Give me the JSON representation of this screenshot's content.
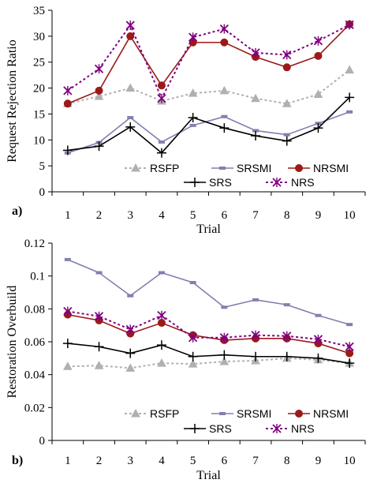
{
  "figure": {
    "panel_labels": [
      "a)",
      "b)"
    ]
  },
  "chart_data": [
    {
      "type": "line",
      "panel": "a)",
      "title": "",
      "xlabel": "Trial",
      "ylabel": "Request Rejection Ratio",
      "x": [
        1,
        2,
        3,
        4,
        5,
        6,
        7,
        8,
        9,
        10
      ],
      "x_tick_labels": [
        "1",
        "2",
        "3",
        "4",
        "5",
        "6",
        "7",
        "8",
        "9",
        "10"
      ],
      "ylim": [
        0,
        35
      ],
      "y_ticks": [
        0,
        5,
        10,
        15,
        20,
        25,
        30,
        35
      ],
      "y_tick_labels": [
        "0",
        "5",
        "10",
        "15",
        "20",
        "25",
        "30",
        "35"
      ],
      "grid": false,
      "legend_position": "bottom-right",
      "series": [
        {
          "name": "RSFP",
          "color": "#b0b0b0",
          "line": "dotted",
          "marker": "triangle",
          "values": [
            17.0,
            18.4,
            20.0,
            17.5,
            19.0,
            19.5,
            18.0,
            17.0,
            18.8,
            23.5
          ]
        },
        {
          "name": "SRSMI",
          "color": "#8080b0",
          "line": "solid",
          "marker": "dash",
          "values": [
            7.5,
            9.5,
            14.3,
            9.6,
            12.8,
            14.5,
            11.8,
            11.0,
            13.2,
            15.4
          ]
        },
        {
          "name": "NRSMI",
          "color": "#9c1a1a",
          "line": "solid",
          "marker": "circle",
          "values": [
            17.0,
            19.5,
            30.0,
            20.5,
            28.8,
            28.8,
            26.0,
            24.0,
            26.2,
            32.3
          ]
        },
        {
          "name": "SRS",
          "color": "#000000",
          "line": "solid",
          "marker": "plus",
          "values": [
            8.0,
            8.8,
            12.5,
            7.5,
            14.3,
            12.3,
            10.8,
            9.8,
            12.3,
            18.2
          ]
        },
        {
          "name": "NRS",
          "color": "#800080",
          "line": "dotted",
          "marker": "star",
          "values": [
            19.5,
            23.7,
            32.1,
            18.0,
            29.8,
            31.4,
            26.8,
            26.4,
            29.1,
            32.2
          ]
        }
      ]
    },
    {
      "type": "line",
      "panel": "b)",
      "title": "",
      "xlabel": "Trial",
      "ylabel": "Restoration Overbuild",
      "x": [
        1,
        2,
        3,
        4,
        5,
        6,
        7,
        8,
        9,
        10
      ],
      "x_tick_labels": [
        "1",
        "2",
        "3",
        "4",
        "5",
        "6",
        "7",
        "8",
        "9",
        "10"
      ],
      "ylim": [
        0,
        0.12
      ],
      "y_ticks": [
        0,
        0.02,
        0.04,
        0.06,
        0.08,
        0.1,
        0.12
      ],
      "y_tick_labels": [
        "0",
        "0.02",
        "0.04",
        "0.06",
        "0.08",
        "0.1",
        "0.12"
      ],
      "grid": false,
      "legend_position": "bottom-right",
      "series": [
        {
          "name": "RSFP",
          "color": "#b0b0b0",
          "line": "dotted",
          "marker": "triangle",
          "values": [
            0.045,
            0.0455,
            0.044,
            0.047,
            0.0465,
            0.048,
            0.0485,
            0.05,
            0.049,
            0.047
          ]
        },
        {
          "name": "SRSMI",
          "color": "#8080b0",
          "line": "solid",
          "marker": "dash",
          "values": [
            0.11,
            0.102,
            0.088,
            0.102,
            0.096,
            0.081,
            0.0855,
            0.0825,
            0.076,
            0.0705
          ]
        },
        {
          "name": "NRSMI",
          "color": "#9c1a1a",
          "line": "solid",
          "marker": "circle",
          "values": [
            0.0765,
            0.073,
            0.065,
            0.0715,
            0.064,
            0.061,
            0.062,
            0.062,
            0.059,
            0.053
          ]
        },
        {
          "name": "SRS",
          "color": "#000000",
          "line": "solid",
          "marker": "plus",
          "values": [
            0.059,
            0.057,
            0.053,
            0.058,
            0.051,
            0.052,
            0.051,
            0.051,
            0.05,
            0.047
          ]
        },
        {
          "name": "NRS",
          "color": "#800080",
          "line": "dotted",
          "marker": "star",
          "values": [
            0.0785,
            0.0755,
            0.0675,
            0.076,
            0.0625,
            0.0625,
            0.064,
            0.0635,
            0.0615,
            0.057
          ]
        }
      ]
    }
  ]
}
